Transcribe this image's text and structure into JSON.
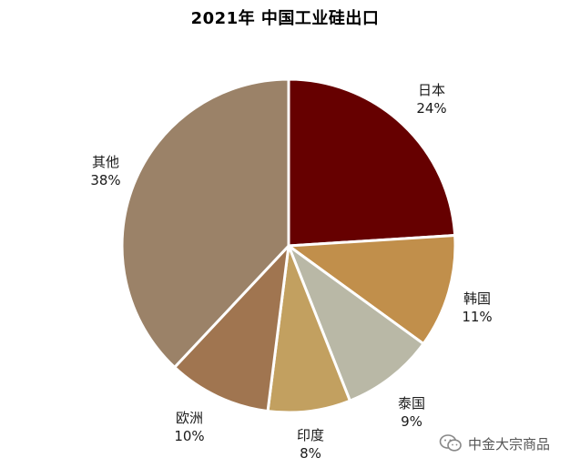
{
  "chart_data": {
    "type": "pie",
    "title": "2021年 中国工业硅出口",
    "slices": [
      {
        "label": "日本",
        "value": 24,
        "value_label": "24%",
        "color": "#660000"
      },
      {
        "label": "韩国",
        "value": 11,
        "value_label": "11%",
        "color": "#c18f4b"
      },
      {
        "label": "泰国",
        "value": 9,
        "value_label": "9%",
        "color": "#b9b8a6"
      },
      {
        "label": "印度",
        "value": 8,
        "value_label": "8%",
        "color": "#c2a060"
      },
      {
        "label": "欧洲",
        "value": 10,
        "value_label": "10%",
        "color": "#a07550"
      },
      {
        "label": "其他",
        "value": 38,
        "value_label": "38%",
        "color": "#9b8268"
      }
    ],
    "start": "12 o'clock",
    "direction": "clockwise",
    "legend": "none"
  },
  "watermark": {
    "text": "中金大宗商品",
    "icon": "wechat-icon"
  }
}
